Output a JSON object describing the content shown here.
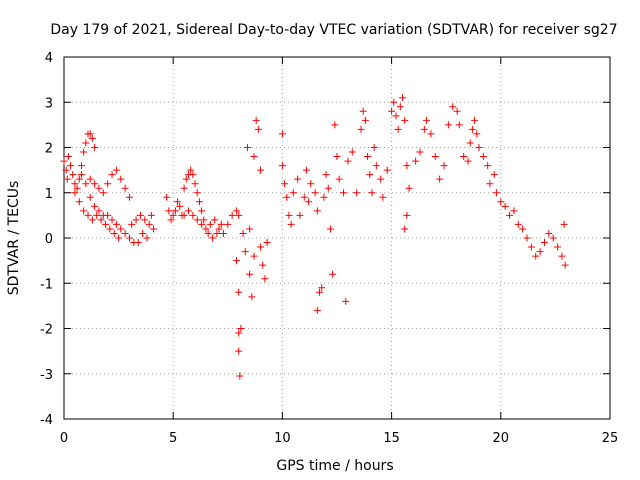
{
  "chart_data": {
    "type": "scatter",
    "title": "Day 179 of 2021, Sidereal Day-to-day VTEC variation (SDTVAR) for receiver sg27",
    "xlabel": "GPS time / hours",
    "ylabel": "SDTVAR / TECUs",
    "xlim": [
      0,
      25
    ],
    "ylim": [
      -4,
      4
    ],
    "xticks": [
      0,
      5,
      10,
      15,
      20,
      25
    ],
    "yticks": [
      -4,
      -3,
      -2,
      -1,
      0,
      1,
      2,
      3,
      4
    ],
    "grid": true,
    "legend": "none",
    "marker": "+",
    "color": "#ff0000",
    "series": [
      {
        "name": "SDTVAR",
        "points": [
          [
            0.0,
            1.7
          ],
          [
            0.1,
            1.5
          ],
          [
            0.15,
            1.3
          ],
          [
            0.2,
            1.8
          ],
          [
            0.3,
            1.6
          ],
          [
            0.4,
            1.4
          ],
          [
            0.5,
            1.2
          ],
          [
            0.6,
            1.1
          ],
          [
            0.7,
            1.3
          ],
          [
            0.8,
            1.6
          ],
          [
            0.9,
            1.9
          ],
          [
            1.0,
            2.1
          ],
          [
            1.1,
            2.3
          ],
          [
            1.2,
            2.3
          ],
          [
            1.3,
            2.2
          ],
          [
            1.4,
            2.0
          ],
          [
            1.2,
            1.3
          ],
          [
            1.4,
            1.2
          ],
          [
            1.6,
            1.1
          ],
          [
            1.8,
            1.0
          ],
          [
            2.0,
            1.2
          ],
          [
            2.2,
            1.4
          ],
          [
            2.4,
            1.5
          ],
          [
            2.6,
            1.3
          ],
          [
            2.8,
            1.1
          ],
          [
            3.0,
            0.9
          ],
          [
            0.5,
            1.0
          ],
          [
            0.7,
            0.8
          ],
          [
            0.9,
            0.6
          ],
          [
            1.1,
            0.5
          ],
          [
            1.3,
            0.4
          ],
          [
            1.5,
            0.5
          ],
          [
            1.7,
            0.4
          ],
          [
            1.9,
            0.3
          ],
          [
            2.1,
            0.2
          ],
          [
            2.3,
            0.1
          ],
          [
            2.5,
            0.0
          ],
          [
            0.8,
            1.4
          ],
          [
            1.0,
            1.2
          ],
          [
            1.2,
            0.9
          ],
          [
            1.4,
            0.7
          ],
          [
            1.6,
            0.6
          ],
          [
            1.8,
            0.5
          ],
          [
            2.0,
            0.5
          ],
          [
            2.2,
            0.4
          ],
          [
            2.4,
            0.3
          ],
          [
            2.6,
            0.2
          ],
          [
            2.8,
            0.1
          ],
          [
            3.0,
            0.0
          ],
          [
            3.2,
            -0.1
          ],
          [
            3.4,
            -0.1
          ],
          [
            3.1,
            0.3
          ],
          [
            3.3,
            0.4
          ],
          [
            3.5,
            0.5
          ],
          [
            3.7,
            0.4
          ],
          [
            3.9,
            0.3
          ],
          [
            4.0,
            0.5
          ],
          [
            4.1,
            0.2
          ],
          [
            3.6,
            0.1
          ],
          [
            3.8,
            0.0
          ],
          [
            4.7,
            0.9
          ],
          [
            4.8,
            0.6
          ],
          [
            4.9,
            0.4
          ],
          [
            5.0,
            0.5
          ],
          [
            5.1,
            0.6
          ],
          [
            5.2,
            0.8
          ],
          [
            5.3,
            0.7
          ],
          [
            5.4,
            0.5
          ],
          [
            5.5,
            1.1
          ],
          [
            5.6,
            1.3
          ],
          [
            5.7,
            1.4
          ],
          [
            5.8,
            1.5
          ],
          [
            5.9,
            1.4
          ],
          [
            6.0,
            1.2
          ],
          [
            6.1,
            1.0
          ],
          [
            6.2,
            0.8
          ],
          [
            6.3,
            0.6
          ],
          [
            6.4,
            0.4
          ],
          [
            5.5,
            0.5
          ],
          [
            5.7,
            0.6
          ],
          [
            5.9,
            0.5
          ],
          [
            6.1,
            0.4
          ],
          [
            6.3,
            0.3
          ],
          [
            6.5,
            0.2
          ],
          [
            6.7,
            0.3
          ],
          [
            6.9,
            0.4
          ],
          [
            7.1,
            0.2
          ],
          [
            7.3,
            0.1
          ],
          [
            7.5,
            0.3
          ],
          [
            7.7,
            0.5
          ],
          [
            7.9,
            0.6
          ],
          [
            8.0,
            0.5
          ],
          [
            6.6,
            0.1
          ],
          [
            6.8,
            0.0
          ],
          [
            7.0,
            0.1
          ],
          [
            7.2,
            0.3
          ],
          [
            7.9,
            -0.5
          ],
          [
            8.0,
            -1.2
          ],
          [
            8.0,
            -2.1
          ],
          [
            8.0,
            -2.5
          ],
          [
            8.05,
            -3.05
          ],
          [
            8.1,
            -2.0
          ],
          [
            8.2,
            0.1
          ],
          [
            8.3,
            -0.3
          ],
          [
            8.4,
            2.0
          ],
          [
            8.5,
            -0.8
          ],
          [
            8.6,
            -1.3
          ],
          [
            8.7,
            -0.4
          ],
          [
            8.8,
            2.6
          ],
          [
            8.9,
            2.4
          ],
          [
            9.0,
            -0.2
          ],
          [
            9.1,
            -0.6
          ],
          [
            9.2,
            -0.9
          ],
          [
            9.3,
            -0.1
          ],
          [
            9.0,
            1.5
          ],
          [
            8.7,
            1.8
          ],
          [
            8.5,
            0.2
          ],
          [
            10.0,
            2.3
          ],
          [
            10.0,
            1.6
          ],
          [
            10.1,
            1.2
          ],
          [
            10.2,
            0.9
          ],
          [
            10.3,
            0.5
          ],
          [
            10.4,
            0.3
          ],
          [
            10.5,
            1.0
          ],
          [
            10.7,
            1.3
          ],
          [
            10.8,
            0.5
          ],
          [
            11.0,
            0.9
          ],
          [
            11.1,
            1.5
          ],
          [
            11.2,
            0.8
          ],
          [
            11.3,
            1.2
          ],
          [
            11.5,
            1.0
          ],
          [
            11.6,
            0.6
          ],
          [
            11.6,
            -1.6
          ],
          [
            11.7,
            -1.2
          ],
          [
            11.8,
            -1.1
          ],
          [
            11.9,
            0.9
          ],
          [
            12.0,
            1.4
          ],
          [
            12.1,
            1.1
          ],
          [
            12.2,
            0.2
          ],
          [
            12.3,
            -0.8
          ],
          [
            12.4,
            2.5
          ],
          [
            12.5,
            1.8
          ],
          [
            12.6,
            1.3
          ],
          [
            12.8,
            1.0
          ],
          [
            12.9,
            -1.4
          ],
          [
            13.0,
            1.7
          ],
          [
            13.2,
            1.9
          ],
          [
            13.4,
            1.0
          ],
          [
            13.6,
            2.4
          ],
          [
            13.7,
            2.8
          ],
          [
            13.8,
            2.6
          ],
          [
            13.9,
            1.8
          ],
          [
            14.0,
            1.4
          ],
          [
            14.1,
            1.0
          ],
          [
            14.2,
            2.0
          ],
          [
            14.3,
            1.6
          ],
          [
            14.5,
            1.3
          ],
          [
            14.6,
            0.9
          ],
          [
            14.8,
            1.5
          ],
          [
            15.0,
            2.8
          ],
          [
            15.1,
            3.0
          ],
          [
            15.2,
            2.7
          ],
          [
            15.3,
            2.4
          ],
          [
            15.4,
            2.9
          ],
          [
            15.5,
            3.1
          ],
          [
            15.6,
            2.6
          ],
          [
            15.7,
            1.6
          ],
          [
            15.8,
            1.1
          ],
          [
            15.6,
            0.2
          ],
          [
            15.7,
            0.5
          ],
          [
            16.1,
            1.7
          ],
          [
            16.3,
            1.9
          ],
          [
            16.5,
            2.4
          ],
          [
            16.6,
            2.6
          ],
          [
            16.8,
            2.3
          ],
          [
            17.0,
            1.8
          ],
          [
            17.2,
            1.3
          ],
          [
            17.4,
            1.6
          ],
          [
            17.6,
            2.5
          ],
          [
            17.8,
            2.9
          ],
          [
            18.0,
            2.8
          ],
          [
            18.1,
            2.5
          ],
          [
            18.3,
            1.8
          ],
          [
            18.5,
            1.7
          ],
          [
            18.6,
            2.1
          ],
          [
            18.7,
            2.4
          ],
          [
            18.8,
            2.6
          ],
          [
            18.9,
            2.3
          ],
          [
            19.0,
            2.0
          ],
          [
            19.2,
            1.8
          ],
          [
            19.4,
            1.6
          ],
          [
            19.5,
            1.2
          ],
          [
            19.7,
            1.4
          ],
          [
            19.8,
            1.0
          ],
          [
            20.0,
            0.8
          ],
          [
            20.2,
            0.7
          ],
          [
            20.4,
            0.5
          ],
          [
            20.6,
            0.6
          ],
          [
            20.8,
            0.3
          ],
          [
            21.0,
            0.2
          ],
          [
            21.2,
            0.0
          ],
          [
            21.4,
            -0.2
          ],
          [
            21.6,
            -0.4
          ],
          [
            21.8,
            -0.3
          ],
          [
            22.0,
            -0.1
          ],
          [
            22.2,
            0.1
          ],
          [
            22.4,
            0.0
          ],
          [
            22.6,
            -0.2
          ],
          [
            22.8,
            -0.4
          ],
          [
            22.9,
            0.3
          ],
          [
            22.95,
            -0.6
          ]
        ]
      }
    ]
  }
}
